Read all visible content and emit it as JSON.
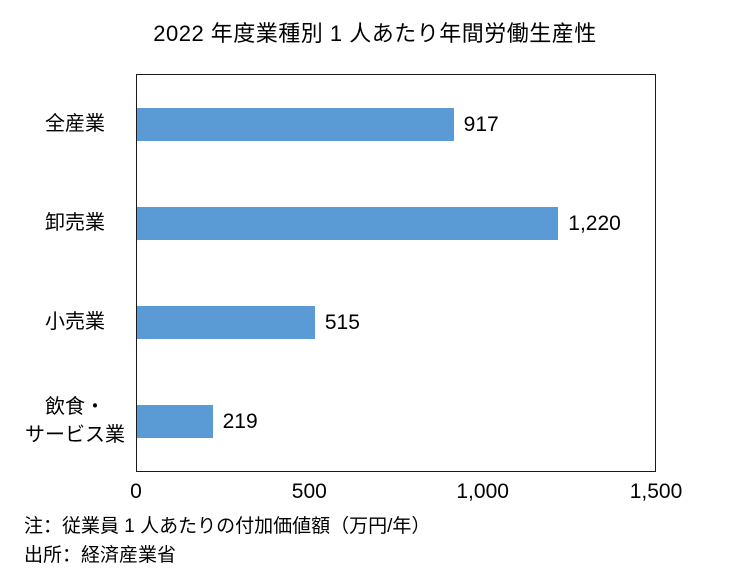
{
  "chart_data": {
    "type": "bar",
    "orientation": "horizontal",
    "title": "2022 年度業種別 1 人あたり年間労働生産性",
    "categories": [
      "全産業",
      "卸売業",
      "小売業",
      "飲食・\nサービス業"
    ],
    "values": [
      917,
      1220,
      515,
      219
    ],
    "value_labels": [
      "917",
      "1,220",
      "515",
      "219"
    ],
    "xlim": [
      0,
      1500
    ],
    "xticks": [
      0,
      500,
      1000,
      1500
    ],
    "xtick_labels": [
      "0",
      "500",
      "1,000",
      "1,500"
    ],
    "bar_color": "#5b9bd5",
    "plot_border_color": "#1a1a1a",
    "grid": false,
    "legend": false
  },
  "notes": {
    "note1": "注：従業員 1 人あたりの付加価値額（万円/年）",
    "note2": "出所：経済産業省"
  }
}
